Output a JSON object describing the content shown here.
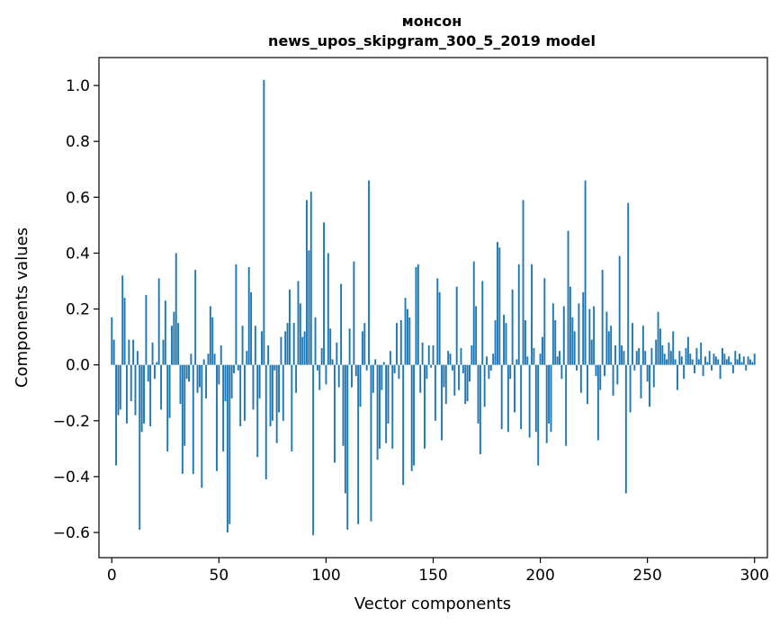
{
  "chart_data": {
    "type": "bar",
    "title": "монсон",
    "subtitle": "news_upos_skipgram_300_5_2019 model",
    "xlabel": "Vector components",
    "ylabel": "Components values",
    "xlim": [
      -6,
      306
    ],
    "ylim": [
      -0.69,
      1.1
    ],
    "xticks": [
      0,
      50,
      100,
      150,
      200,
      250,
      300
    ],
    "xtick_labels": [
      "0",
      "50",
      "100",
      "150",
      "200",
      "250",
      "300"
    ],
    "yticks": [
      -0.6,
      -0.4,
      -0.2,
      0.0,
      0.2,
      0.4,
      0.6,
      0.8,
      1.0
    ],
    "ytick_labels": [
      "−0.6",
      "−0.4",
      "−0.2",
      "0.0",
      "0.2",
      "0.4",
      "0.6",
      "0.8",
      "1.0"
    ],
    "bar_color": "#1f77b4",
    "grid": false,
    "values": [
      0.17,
      0.09,
      -0.36,
      -0.18,
      -0.16,
      0.32,
      0.24,
      -0.21,
      0.09,
      -0.13,
      0.09,
      -0.18,
      0.05,
      -0.59,
      -0.24,
      -0.21,
      0.25,
      -0.06,
      -0.22,
      0.08,
      -0.05,
      0.01,
      0.31,
      -0.16,
      0.09,
      0.23,
      -0.31,
      -0.19,
      0.14,
      0.19,
      0.4,
      0.15,
      -0.14,
      -0.39,
      -0.29,
      -0.05,
      -0.06,
      0.04,
      -0.39,
      0.34,
      -0.1,
      -0.08,
      -0.44,
      0.02,
      -0.12,
      0.04,
      0.21,
      0.17,
      0.04,
      -0.38,
      -0.07,
      0.07,
      -0.31,
      -0.13,
      -0.6,
      -0.57,
      -0.12,
      -0.03,
      0.36,
      -0.02,
      -0.22,
      0.14,
      -0.2,
      0.05,
      0.35,
      0.26,
      -0.16,
      0.14,
      -0.33,
      -0.12,
      0.12,
      1.02,
      -0.41,
      0.07,
      -0.22,
      -0.2,
      -0.02,
      -0.28,
      -0.17,
      0.1,
      -0.2,
      0.12,
      0.15,
      0.27,
      -0.31,
      0.15,
      -0.1,
      0.3,
      0.22,
      0.1,
      0.12,
      0.59,
      0.41,
      0.62,
      -0.61,
      0.17,
      -0.02,
      -0.09,
      0.06,
      0.51,
      -0.07,
      0.4,
      0.13,
      0.02,
      -0.35,
      0.08,
      -0.08,
      0.29,
      -0.29,
      -0.46,
      -0.59,
      0.13,
      -0.08,
      0.37,
      -0.04,
      -0.57,
      -0.15,
      0.12,
      0.15,
      -0.02,
      0.66,
      -0.56,
      -0.1,
      0.02,
      -0.34,
      -0.3,
      -0.09,
      0.01,
      -0.28,
      -0.21,
      0.05,
      -0.3,
      -0.03,
      0.15,
      -0.05,
      0.16,
      -0.43,
      0.24,
      0.2,
      0.17,
      -0.38,
      -0.36,
      0.35,
      0.36,
      -0.1,
      0.08,
      -0.3,
      -0.05,
      0.07,
      -0.01,
      0.07,
      -0.2,
      0.31,
      0.26,
      -0.27,
      -0.08,
      -0.14,
      0.05,
      0.04,
      -0.02,
      -0.11,
      0.28,
      -0.09,
      0.06,
      -0.03,
      -0.14,
      -0.13,
      -0.06,
      0.07,
      0.37,
      0.21,
      -0.21,
      -0.32,
      0.3,
      -0.15,
      0.03,
      -0.05,
      -0.02,
      0.04,
      0.16,
      0.44,
      0.42,
      -0.23,
      0.18,
      0.15,
      -0.24,
      -0.05,
      0.27,
      -0.17,
      0.02,
      0.36,
      -0.23,
      0.59,
      0.16,
      0.03,
      -0.26,
      0.36,
      0.06,
      -0.24,
      -0.36,
      0.04,
      0.1,
      0.31,
      -0.28,
      -0.21,
      -0.24,
      0.22,
      0.16,
      0.03,
      0.05,
      -0.05,
      0.21,
      -0.29,
      0.48,
      0.28,
      0.17,
      0.12,
      -0.02,
      0.22,
      -0.1,
      0.26,
      0.66,
      -0.14,
      0.2,
      0.09,
      0.21,
      -0.04,
      -0.27,
      -0.09,
      0.34,
      -0.04,
      0.19,
      0.12,
      0.14,
      -0.11,
      0.07,
      -0.07,
      0.39,
      0.07,
      0.05,
      -0.46,
      0.58,
      -0.17,
      0.15,
      -0.02,
      0.05,
      0.06,
      -0.12,
      0.14,
      0.05,
      -0.06,
      -0.15,
      0.06,
      -0.08,
      0.09,
      0.19,
      0.13,
      0.07,
      0.04,
      0.02,
      0.08,
      0.05,
      0.12,
      0.02,
      -0.09,
      0.05,
      0.03,
      -0.05,
      0.06,
      0.1,
      0.04,
      0.02,
      -0.03,
      0.06,
      0.02,
      0.08,
      -0.04,
      0.03,
      0.01,
      0.05,
      -0.02,
      0.04,
      0.03,
      0.02,
      -0.05,
      0.06,
      0.04,
      0.02,
      0.03,
      0.01,
      -0.03,
      0.05,
      0.02,
      0.04,
      0.01,
      0.03,
      -0.02,
      0.03,
      0.02,
      0.01,
      0.04
    ]
  }
}
